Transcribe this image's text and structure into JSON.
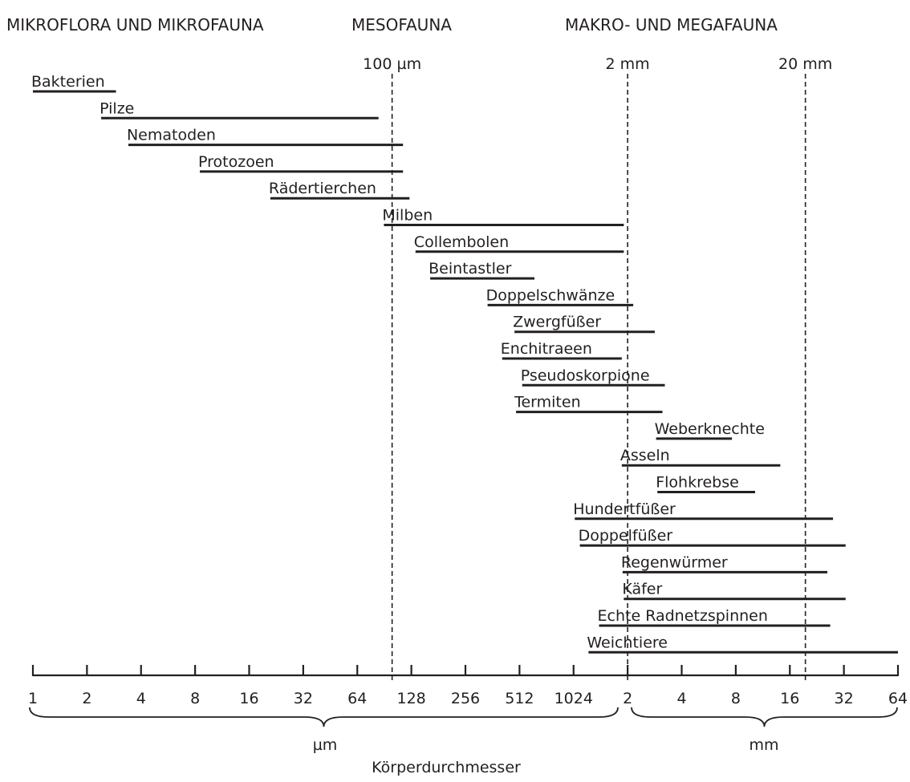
{
  "chart_data": {
    "type": "range-bar",
    "categories": {
      "micro": "MIKROFLORA UND MIKROFAUNA",
      "meso": "MESOFAUNA",
      "macro": "MAKRO- UND MEGAFAUNA"
    },
    "reference_lines": [
      {
        "label": "100 µm",
        "value_um": 100
      },
      {
        "label": "2 mm",
        "value_um": 2048
      },
      {
        "label": "20 mm",
        "value_um": 20000
      }
    ],
    "x_axis": {
      "scale": "log2",
      "range_um": [
        1,
        65536
      ],
      "ticks_um": [
        {
          "label": "1",
          "value_um": 1
        },
        {
          "label": "2",
          "value_um": 2
        },
        {
          "label": "4",
          "value_um": 4
        },
        {
          "label": "8",
          "value_um": 8
        },
        {
          "label": "16",
          "value_um": 16
        },
        {
          "label": "32",
          "value_um": 32
        },
        {
          "label": "64",
          "value_um": 64
        },
        {
          "label": "128",
          "value_um": 128
        },
        {
          "label": "256",
          "value_um": 256
        },
        {
          "label": "512",
          "value_um": 512
        },
        {
          "label": "1024",
          "value_um": 1024
        }
      ],
      "ticks_mm": [
        {
          "label": "2",
          "value_um": 2048
        },
        {
          "label": "4",
          "value_um": 4096
        },
        {
          "label": "8",
          "value_um": 8192
        },
        {
          "label": "16",
          "value_um": 16384
        },
        {
          "label": "32",
          "value_um": 32768
        },
        {
          "label": "64",
          "value_um": 65536
        }
      ],
      "unit_um": "µm",
      "unit_mm": "mm",
      "xlabel": "Körperdurchmesser"
    },
    "series": [
      {
        "name": "Bakterien",
        "min_um": 1,
        "max_um": 2.9
      },
      {
        "name": "Pilze",
        "min_um": 2.4,
        "max_um": 84
      },
      {
        "name": "Nematoden",
        "min_um": 3.4,
        "max_um": 115
      },
      {
        "name": "Protozoen",
        "min_um": 8.5,
        "max_um": 115
      },
      {
        "name": "Rädertierchen",
        "min_um": 21,
        "max_um": 125
      },
      {
        "name": "Milben",
        "min_um": 90,
        "max_um": 1950
      },
      {
        "name": "Collembolen",
        "min_um": 135,
        "max_um": 1950
      },
      {
        "name": "Beintastler",
        "min_um": 163,
        "max_um": 620
      },
      {
        "name": "Doppelschwänze",
        "min_um": 340,
        "max_um": 2200
      },
      {
        "name": "Zwergfüßer",
        "min_um": 480,
        "max_um": 2900
      },
      {
        "name": "Enchitraeen",
        "min_um": 410,
        "max_um": 1900
      },
      {
        "name": "Pseudoskorpione",
        "min_um": 530,
        "max_um": 3300
      },
      {
        "name": "Termiten",
        "min_um": 490,
        "max_um": 3200
      },
      {
        "name": "Weberknechte",
        "min_um": 2950,
        "max_um": 7800
      },
      {
        "name": "Asseln",
        "min_um": 1900,
        "max_um": 14500
      },
      {
        "name": "Flohkrebse",
        "min_um": 3000,
        "max_um": 10500
      },
      {
        "name": "Hundertfüßer",
        "min_um": 1040,
        "max_um": 28500
      },
      {
        "name": "Doppelfüßer",
        "min_um": 1110,
        "max_um": 33500
      },
      {
        "name": "Regenwürmer",
        "min_um": 1920,
        "max_um": 26500
      },
      {
        "name": "Käfer",
        "min_um": 1950,
        "max_um": 33500
      },
      {
        "name": "Echte Radnetzspinnen",
        "min_um": 1420,
        "max_um": 27500
      },
      {
        "name": "Weichtiere",
        "min_um": 1240,
        "max_um": 65536
      }
    ],
    "colors": {
      "ink": "#231f20",
      "background": "#ffffff"
    }
  }
}
